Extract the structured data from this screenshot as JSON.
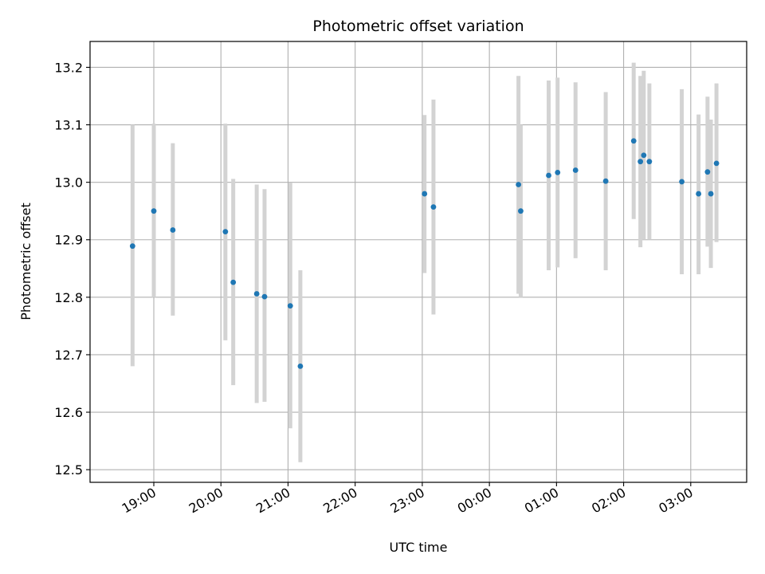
{
  "chart_data": {
    "type": "scatter",
    "title": "Photometric offset variation",
    "xlabel": "UTC time",
    "ylabel": "Photometric offset",
    "grid": true,
    "x_ticks": [
      "19:00",
      "20:00",
      "21:00",
      "22:00",
      "23:00",
      "00:00",
      "01:00",
      "02:00",
      "03:00"
    ],
    "x_range": [
      "18:03",
      "03:50"
    ],
    "ylim": [
      12.478,
      13.245
    ],
    "y_ticks": [
      12.5,
      12.6,
      12.7,
      12.8,
      12.9,
      13.0,
      13.1,
      13.2
    ],
    "y_tick_labels": [
      "12.5",
      "12.6",
      "12.7",
      "12.8",
      "12.9",
      "13.0",
      "13.1",
      "13.2"
    ],
    "marker_color": "#1f77b4",
    "errorbar_color": "#d3d3d3",
    "points": [
      {
        "time": "18:41",
        "y": 12.889,
        "ylow": 12.68,
        "yhigh": 13.1
      },
      {
        "time": "19:00",
        "y": 12.95,
        "ylow": 12.8,
        "yhigh": 13.102
      },
      {
        "time": "19:17",
        "y": 12.917,
        "ylow": 12.768,
        "yhigh": 13.068
      },
      {
        "time": "20:04",
        "y": 12.914,
        "ylow": 12.725,
        "yhigh": 13.102
      },
      {
        "time": "20:11",
        "y": 12.826,
        "ylow": 12.647,
        "yhigh": 13.006
      },
      {
        "time": "20:32",
        "y": 12.806,
        "ylow": 12.616,
        "yhigh": 12.996
      },
      {
        "time": "20:39",
        "y": 12.801,
        "ylow": 12.618,
        "yhigh": 12.988
      },
      {
        "time": "21:02",
        "y": 12.785,
        "ylow": 12.572,
        "yhigh": 12.999
      },
      {
        "time": "21:11",
        "y": 12.68,
        "ylow": 12.513,
        "yhigh": 12.847
      },
      {
        "time": "23:02",
        "y": 12.98,
        "ylow": 12.842,
        "yhigh": 13.117
      },
      {
        "time": "23:10",
        "y": 12.957,
        "ylow": 12.77,
        "yhigh": 13.144
      },
      {
        "time": "00:26",
        "y": 12.996,
        "ylow": 12.806,
        "yhigh": 13.185
      },
      {
        "time": "00:28",
        "y": 12.95,
        "ylow": 12.8,
        "yhigh": 13.1
      },
      {
        "time": "00:53",
        "y": 13.012,
        "ylow": 12.847,
        "yhigh": 13.177
      },
      {
        "time": "01:01",
        "y": 13.017,
        "ylow": 12.852,
        "yhigh": 13.182
      },
      {
        "time": "01:17",
        "y": 13.021,
        "ylow": 12.868,
        "yhigh": 13.174
      },
      {
        "time": "01:44",
        "y": 13.002,
        "ylow": 12.847,
        "yhigh": 13.157
      },
      {
        "time": "02:09",
        "y": 13.072,
        "ylow": 12.936,
        "yhigh": 13.208
      },
      {
        "time": "02:15",
        "y": 13.036,
        "ylow": 12.887,
        "yhigh": 13.185
      },
      {
        "time": "02:18",
        "y": 13.047,
        "ylow": 12.9,
        "yhigh": 13.194
      },
      {
        "time": "02:23",
        "y": 13.036,
        "ylow": 12.9,
        "yhigh": 13.172
      },
      {
        "time": "02:52",
        "y": 13.001,
        "ylow": 12.84,
        "yhigh": 13.162
      },
      {
        "time": "03:07",
        "y": 12.98,
        "ylow": 12.84,
        "yhigh": 13.118
      },
      {
        "time": "03:15",
        "y": 13.018,
        "ylow": 12.888,
        "yhigh": 13.149
      },
      {
        "time": "03:18",
        "y": 12.98,
        "ylow": 12.851,
        "yhigh": 13.109
      },
      {
        "time": "03:23",
        "y": 13.033,
        "ylow": 12.896,
        "yhigh": 13.172
      }
    ]
  }
}
